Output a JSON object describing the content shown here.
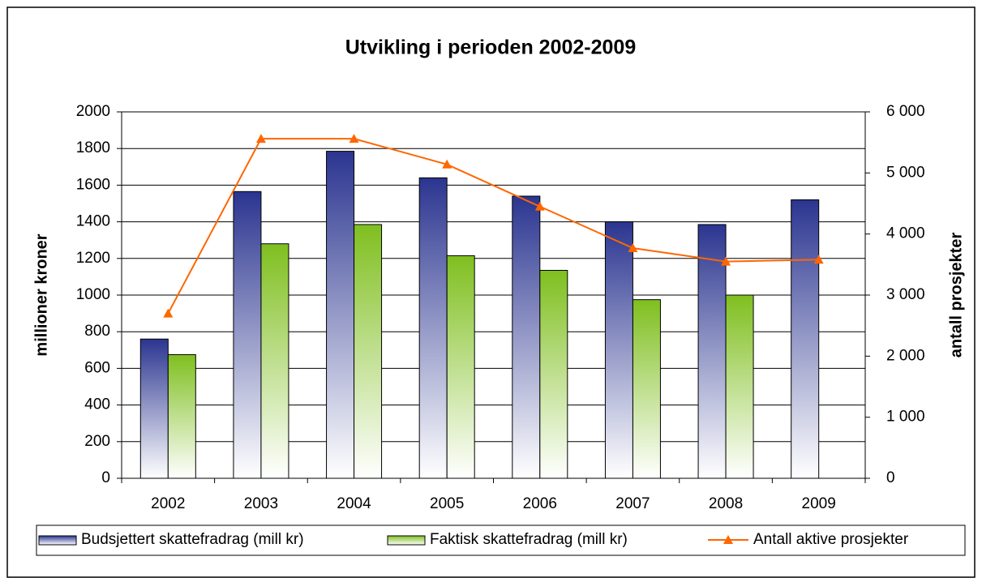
{
  "chart_data": {
    "type": "bar",
    "title": "Utvikling i perioden 2002-2009",
    "ylabel": "millioner kroner",
    "y2label": "antall prosjekter",
    "categories": [
      "2002",
      "2003",
      "2004",
      "2005",
      "2006",
      "2007",
      "2008",
      "2009"
    ],
    "series": [
      {
        "name": "Budsjettert skattefradrag (mill kr)",
        "color": "#2b3590",
        "type": "bar",
        "values": [
          760,
          1565,
          1785,
          1640,
          1540,
          1400,
          1385,
          1520
        ]
      },
      {
        "name": "Faktisk skattefradrag (mill kr)",
        "color": "#7fbf1f",
        "type": "bar",
        "values": [
          675,
          1280,
          1385,
          1215,
          1135,
          975,
          1000,
          null
        ]
      },
      {
        "name": "Antall aktive prosjekter",
        "color": "#ff6600",
        "type": "line",
        "axis": "y2",
        "values": [
          2700,
          5560,
          5560,
          5140,
          4450,
          3770,
          3550,
          3580
        ]
      }
    ],
    "ylim": [
      0,
      2000
    ],
    "yticks": [
      0,
      200,
      400,
      600,
      800,
      1000,
      1200,
      1400,
      1600,
      1800,
      2000
    ],
    "y2lim": [
      0,
      6000
    ],
    "y2ticks": [
      0,
      {
        "value": 1000,
        "label": "1 000"
      },
      {
        "value": 2000,
        "label": "2 000"
      },
      {
        "value": 3000,
        "label": "3 000"
      },
      {
        "value": 4000,
        "label": "4 000"
      },
      {
        "value": 5000,
        "label": "5 000"
      },
      {
        "value": 6000,
        "label": "6 000"
      }
    ],
    "grid": true,
    "legend": "bottom"
  }
}
